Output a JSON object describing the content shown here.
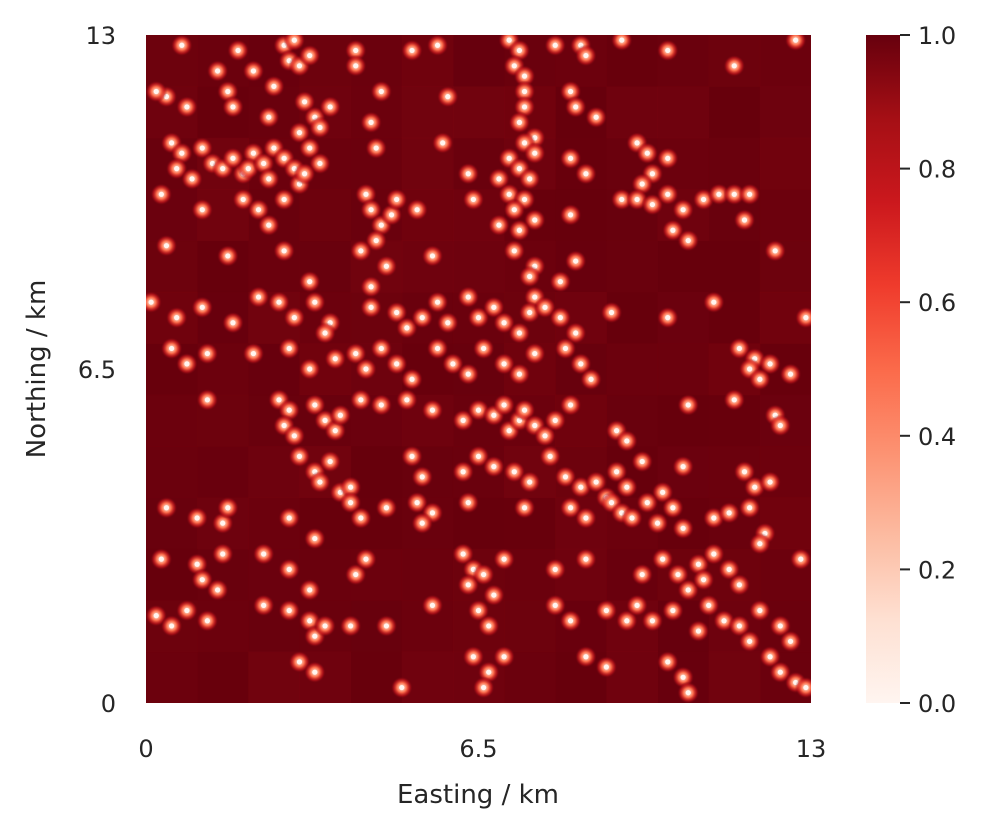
{
  "chart_data": {
    "type": "heatmap",
    "title": "",
    "xlabel": "Easting / km",
    "ylabel": "Northing / km",
    "xlim": [
      0,
      13
    ],
    "ylim": [
      0,
      13
    ],
    "x_ticks": [
      "0",
      "6.5",
      "13"
    ],
    "y_ticks": [
      "0",
      "6.5",
      "13"
    ],
    "grid": false,
    "tile_grid": [
      13,
      13
    ],
    "tile_size_km": 1,
    "colormap": {
      "name": "Reds",
      "range": [
        0.0,
        1.0
      ],
      "ticks": [
        "0.0",
        "0.2",
        "0.4",
        "0.6",
        "0.8",
        "1.0"
      ],
      "stops": [
        "#fff5f0",
        "#fee0d2",
        "#fcbba1",
        "#fc9272",
        "#fb6a4a",
        "#ef3b2c",
        "#cb181d",
        "#a50f15",
        "#67000d"
      ]
    },
    "background_value": 1.0,
    "point_value": 0.0,
    "points_km": [
      [
        0.7,
        12.8
      ],
      [
        1.4,
        12.3
      ],
      [
        0.4,
        11.8
      ],
      [
        1.8,
        12.7
      ],
      [
        2.1,
        12.3
      ],
      [
        2.7,
        12.8
      ],
      [
        2.8,
        12.5
      ],
      [
        3.0,
        12.4
      ],
      [
        2.9,
        12.9
      ],
      [
        3.2,
        12.6
      ],
      [
        4.1,
        12.7
      ],
      [
        4.1,
        12.4
      ],
      [
        5.2,
        12.7
      ],
      [
        5.7,
        12.8
      ],
      [
        7.1,
        12.9
      ],
      [
        7.3,
        12.7
      ],
      [
        7.2,
        12.4
      ],
      [
        7.4,
        12.2
      ],
      [
        8.0,
        12.8
      ],
      [
        8.5,
        12.8
      ],
      [
        8.6,
        12.6
      ],
      [
        9.3,
        12.9
      ],
      [
        10.2,
        12.7
      ],
      [
        11.5,
        12.4
      ],
      [
        12.7,
        12.9
      ],
      [
        0.2,
        11.9
      ],
      [
        0.8,
        11.6
      ],
      [
        1.6,
        11.9
      ],
      [
        1.7,
        11.6
      ],
      [
        2.5,
        12.0
      ],
      [
        3.1,
        11.7
      ],
      [
        3.3,
        11.4
      ],
      [
        3.4,
        11.2
      ],
      [
        3.6,
        11.6
      ],
      [
        3.0,
        11.1
      ],
      [
        2.4,
        11.4
      ],
      [
        4.6,
        11.9
      ],
      [
        4.4,
        11.3
      ],
      [
        5.9,
        11.8
      ],
      [
        7.4,
        11.9
      ],
      [
        7.4,
        11.6
      ],
      [
        7.3,
        11.3
      ],
      [
        7.6,
        11.0
      ],
      [
        8.3,
        11.9
      ],
      [
        8.4,
        11.6
      ],
      [
        8.8,
        11.4
      ],
      [
        0.5,
        10.9
      ],
      [
        0.7,
        10.7
      ],
      [
        0.6,
        10.4
      ],
      [
        0.9,
        10.2
      ],
      [
        1.1,
        10.8
      ],
      [
        1.3,
        10.5
      ],
      [
        1.5,
        10.4
      ],
      [
        1.7,
        10.6
      ],
      [
        1.9,
        10.3
      ],
      [
        2.1,
        10.7
      ],
      [
        2.0,
        10.4
      ],
      [
        2.3,
        10.5
      ],
      [
        2.5,
        10.8
      ],
      [
        2.4,
        10.2
      ],
      [
        2.7,
        10.6
      ],
      [
        2.9,
        10.4
      ],
      [
        3.0,
        10.1
      ],
      [
        3.2,
        10.8
      ],
      [
        3.4,
        10.5
      ],
      [
        3.1,
        10.3
      ],
      [
        4.5,
        10.8
      ],
      [
        5.8,
        10.9
      ],
      [
        6.3,
        10.3
      ],
      [
        6.9,
        10.2
      ],
      [
        7.1,
        10.6
      ],
      [
        7.4,
        10.9
      ],
      [
        7.6,
        10.7
      ],
      [
        7.3,
        10.4
      ],
      [
        7.5,
        10.2
      ],
      [
        8.3,
        10.6
      ],
      [
        8.6,
        10.3
      ],
      [
        9.6,
        10.9
      ],
      [
        9.8,
        10.7
      ],
      [
        9.9,
        10.3
      ],
      [
        10.2,
        10.6
      ],
      [
        9.7,
        10.1
      ],
      [
        0.3,
        9.9
      ],
      [
        1.1,
        9.6
      ],
      [
        1.9,
        9.8
      ],
      [
        2.2,
        9.6
      ],
      [
        2.4,
        9.3
      ],
      [
        2.7,
        9.8
      ],
      [
        4.3,
        9.9
      ],
      [
        4.4,
        9.6
      ],
      [
        4.6,
        9.3
      ],
      [
        4.5,
        9.0
      ],
      [
        4.8,
        9.5
      ],
      [
        4.9,
        9.8
      ],
      [
        5.3,
        9.6
      ],
      [
        6.4,
        9.8
      ],
      [
        6.9,
        9.3
      ],
      [
        7.1,
        9.9
      ],
      [
        7.4,
        9.8
      ],
      [
        7.2,
        9.6
      ],
      [
        7.6,
        9.4
      ],
      [
        7.3,
        9.2
      ],
      [
        8.3,
        9.5
      ],
      [
        9.3,
        9.8
      ],
      [
        9.6,
        9.8
      ],
      [
        9.9,
        9.7
      ],
      [
        10.2,
        9.9
      ],
      [
        10.5,
        9.6
      ],
      [
        10.3,
        9.2
      ],
      [
        10.6,
        9.0
      ],
      [
        10.9,
        9.8
      ],
      [
        11.2,
        9.9
      ],
      [
        11.5,
        9.9
      ],
      [
        11.8,
        9.9
      ],
      [
        11.7,
        9.4
      ],
      [
        0.4,
        8.9
      ],
      [
        1.6,
        8.7
      ],
      [
        2.7,
        8.8
      ],
      [
        3.2,
        8.2
      ],
      [
        4.2,
        8.8
      ],
      [
        4.7,
        8.5
      ],
      [
        4.4,
        8.1
      ],
      [
        5.6,
        8.7
      ],
      [
        7.2,
        8.8
      ],
      [
        7.6,
        8.5
      ],
      [
        7.5,
        8.3
      ],
      [
        8.4,
        8.6
      ],
      [
        8.1,
        8.2
      ],
      [
        12.3,
        8.8
      ],
      [
        0.1,
        7.8
      ],
      [
        0.6,
        7.5
      ],
      [
        1.1,
        7.7
      ],
      [
        1.7,
        7.4
      ],
      [
        2.2,
        7.9
      ],
      [
        2.6,
        7.8
      ],
      [
        2.9,
        7.5
      ],
      [
        3.3,
        7.8
      ],
      [
        3.6,
        7.4
      ],
      [
        3.5,
        7.2
      ],
      [
        4.4,
        7.7
      ],
      [
        4.9,
        7.6
      ],
      [
        5.1,
        7.3
      ],
      [
        5.4,
        7.5
      ],
      [
        5.7,
        7.8
      ],
      [
        5.9,
        7.4
      ],
      [
        6.3,
        7.9
      ],
      [
        6.5,
        7.5
      ],
      [
        6.8,
        7.7
      ],
      [
        7.0,
        7.4
      ],
      [
        7.3,
        7.2
      ],
      [
        7.6,
        7.9
      ],
      [
        7.5,
        7.6
      ],
      [
        7.8,
        7.7
      ],
      [
        8.1,
        7.5
      ],
      [
        8.4,
        7.2
      ],
      [
        9.1,
        7.6
      ],
      [
        10.2,
        7.5
      ],
      [
        11.1,
        7.8
      ],
      [
        12.9,
        7.5
      ],
      [
        0.5,
        6.9
      ],
      [
        0.8,
        6.6
      ],
      [
        1.2,
        6.8
      ],
      [
        2.1,
        6.8
      ],
      [
        2.8,
        6.9
      ],
      [
        3.2,
        6.5
      ],
      [
        3.7,
        6.7
      ],
      [
        4.1,
        6.8
      ],
      [
        4.3,
        6.5
      ],
      [
        4.6,
        6.9
      ],
      [
        4.9,
        6.6
      ],
      [
        5.2,
        6.3
      ],
      [
        5.7,
        6.9
      ],
      [
        6.0,
        6.6
      ],
      [
        6.3,
        6.4
      ],
      [
        6.6,
        6.9
      ],
      [
        7.0,
        6.6
      ],
      [
        7.3,
        6.4
      ],
      [
        7.6,
        6.8
      ],
      [
        8.2,
        6.9
      ],
      [
        8.5,
        6.6
      ],
      [
        8.7,
        6.3
      ],
      [
        11.6,
        6.9
      ],
      [
        11.9,
        6.7
      ],
      [
        12.2,
        6.6
      ],
      [
        12.6,
        6.4
      ],
      [
        11.8,
        6.5
      ],
      [
        12.0,
        6.3
      ],
      [
        1.2,
        5.9
      ],
      [
        2.6,
        5.9
      ],
      [
        2.8,
        5.7
      ],
      [
        2.7,
        5.4
      ],
      [
        2.9,
        5.2
      ],
      [
        3.3,
        5.8
      ],
      [
        3.5,
        5.5
      ],
      [
        3.7,
        5.3
      ],
      [
        3.8,
        5.6
      ],
      [
        4.2,
        5.9
      ],
      [
        4.6,
        5.8
      ],
      [
        5.1,
        5.9
      ],
      [
        5.6,
        5.7
      ],
      [
        6.2,
        5.5
      ],
      [
        6.5,
        5.7
      ],
      [
        6.8,
        5.6
      ],
      [
        7.0,
        5.8
      ],
      [
        7.1,
        5.3
      ],
      [
        7.3,
        5.5
      ],
      [
        7.4,
        5.7
      ],
      [
        7.6,
        5.4
      ],
      [
        7.8,
        5.2
      ],
      [
        8.0,
        5.5
      ],
      [
        8.3,
        5.8
      ],
      [
        9.2,
        5.3
      ],
      [
        9.4,
        5.1
      ],
      [
        10.6,
        5.8
      ],
      [
        11.5,
        5.9
      ],
      [
        12.3,
        5.6
      ],
      [
        12.4,
        5.4
      ],
      [
        3.0,
        4.8
      ],
      [
        3.3,
        4.5
      ],
      [
        3.6,
        4.7
      ],
      [
        3.4,
        4.3
      ],
      [
        3.8,
        4.1
      ],
      [
        4.0,
        4.2
      ],
      [
        5.2,
        4.8
      ],
      [
        5.4,
        4.4
      ],
      [
        6.2,
        4.5
      ],
      [
        6.5,
        4.8
      ],
      [
        6.8,
        4.6
      ],
      [
        7.2,
        4.5
      ],
      [
        7.5,
        4.3
      ],
      [
        7.9,
        4.8
      ],
      [
        8.2,
        4.4
      ],
      [
        8.5,
        4.2
      ],
      [
        8.8,
        4.3
      ],
      [
        9.0,
        4.0
      ],
      [
        9.2,
        4.5
      ],
      [
        9.4,
        4.2
      ],
      [
        9.7,
        4.7
      ],
      [
        10.1,
        4.1
      ],
      [
        10.5,
        4.6
      ],
      [
        11.7,
        4.5
      ],
      [
        11.9,
        4.2
      ],
      [
        12.2,
        4.3
      ],
      [
        0.4,
        3.8
      ],
      [
        1.0,
        3.6
      ],
      [
        1.5,
        3.5
      ],
      [
        1.6,
        3.8
      ],
      [
        2.8,
        3.6
      ],
      [
        3.3,
        3.2
      ],
      [
        4.0,
        3.9
      ],
      [
        4.2,
        3.6
      ],
      [
        4.7,
        3.8
      ],
      [
        5.3,
        3.9
      ],
      [
        5.6,
        3.7
      ],
      [
        5.4,
        3.5
      ],
      [
        6.3,
        3.9
      ],
      [
        7.4,
        3.8
      ],
      [
        8.3,
        3.8
      ],
      [
        8.6,
        3.6
      ],
      [
        9.1,
        3.9
      ],
      [
        9.3,
        3.7
      ],
      [
        9.5,
        3.6
      ],
      [
        9.8,
        3.9
      ],
      [
        10.0,
        3.5
      ],
      [
        10.3,
        3.8
      ],
      [
        10.5,
        3.4
      ],
      [
        11.1,
        3.6
      ],
      [
        11.4,
        3.7
      ],
      [
        11.8,
        3.8
      ],
      [
        12.1,
        3.3
      ],
      [
        12.0,
        3.1
      ],
      [
        0.3,
        2.8
      ],
      [
        1.0,
        2.7
      ],
      [
        1.1,
        2.4
      ],
      [
        1.4,
        2.2
      ],
      [
        1.5,
        2.9
      ],
      [
        2.3,
        2.9
      ],
      [
        2.8,
        2.6
      ],
      [
        3.2,
        2.2
      ],
      [
        4.1,
        2.5
      ],
      [
        4.3,
        2.8
      ],
      [
        6.2,
        2.9
      ],
      [
        6.4,
        2.6
      ],
      [
        6.3,
        2.3
      ],
      [
        6.6,
        2.5
      ],
      [
        6.8,
        2.1
      ],
      [
        7.0,
        2.8
      ],
      [
        8.0,
        2.6
      ],
      [
        8.6,
        2.8
      ],
      [
        9.7,
        2.5
      ],
      [
        10.1,
        2.8
      ],
      [
        10.4,
        2.5
      ],
      [
        10.6,
        2.2
      ],
      [
        10.8,
        2.7
      ],
      [
        10.9,
        2.4
      ],
      [
        11.1,
        2.9
      ],
      [
        11.4,
        2.6
      ],
      [
        11.6,
        2.3
      ],
      [
        12.8,
        2.8
      ],
      [
        0.2,
        1.7
      ],
      [
        0.5,
        1.5
      ],
      [
        0.8,
        1.8
      ],
      [
        1.2,
        1.6
      ],
      [
        2.3,
        1.9
      ],
      [
        2.8,
        1.8
      ],
      [
        3.2,
        1.6
      ],
      [
        3.3,
        1.3
      ],
      [
        3.5,
        1.5
      ],
      [
        4.0,
        1.5
      ],
      [
        4.7,
        1.5
      ],
      [
        5.6,
        1.9
      ],
      [
        6.5,
        1.8
      ],
      [
        6.7,
        1.5
      ],
      [
        8.0,
        1.9
      ],
      [
        8.3,
        1.6
      ],
      [
        9.0,
        1.8
      ],
      [
        9.4,
        1.6
      ],
      [
        9.6,
        1.9
      ],
      [
        9.9,
        1.6
      ],
      [
        10.3,
        1.8
      ],
      [
        11.0,
        1.9
      ],
      [
        11.3,
        1.6
      ],
      [
        11.6,
        1.5
      ],
      [
        11.8,
        1.2
      ],
      [
        12.0,
        1.8
      ],
      [
        12.4,
        1.5
      ],
      [
        12.6,
        1.2
      ],
      [
        10.8,
        1.4
      ],
      [
        3.0,
        0.8
      ],
      [
        3.3,
        0.6
      ],
      [
        5.0,
        0.3
      ],
      [
        6.4,
        0.9
      ],
      [
        6.7,
        0.6
      ],
      [
        6.6,
        0.3
      ],
      [
        7.0,
        0.9
      ],
      [
        8.6,
        0.9
      ],
      [
        9.0,
        0.7
      ],
      [
        10.2,
        0.8
      ],
      [
        10.5,
        0.5
      ],
      [
        10.6,
        0.2
      ],
      [
        12.2,
        0.9
      ],
      [
        12.4,
        0.6
      ],
      [
        12.7,
        0.4
      ],
      [
        12.9,
        0.3
      ]
    ]
  }
}
